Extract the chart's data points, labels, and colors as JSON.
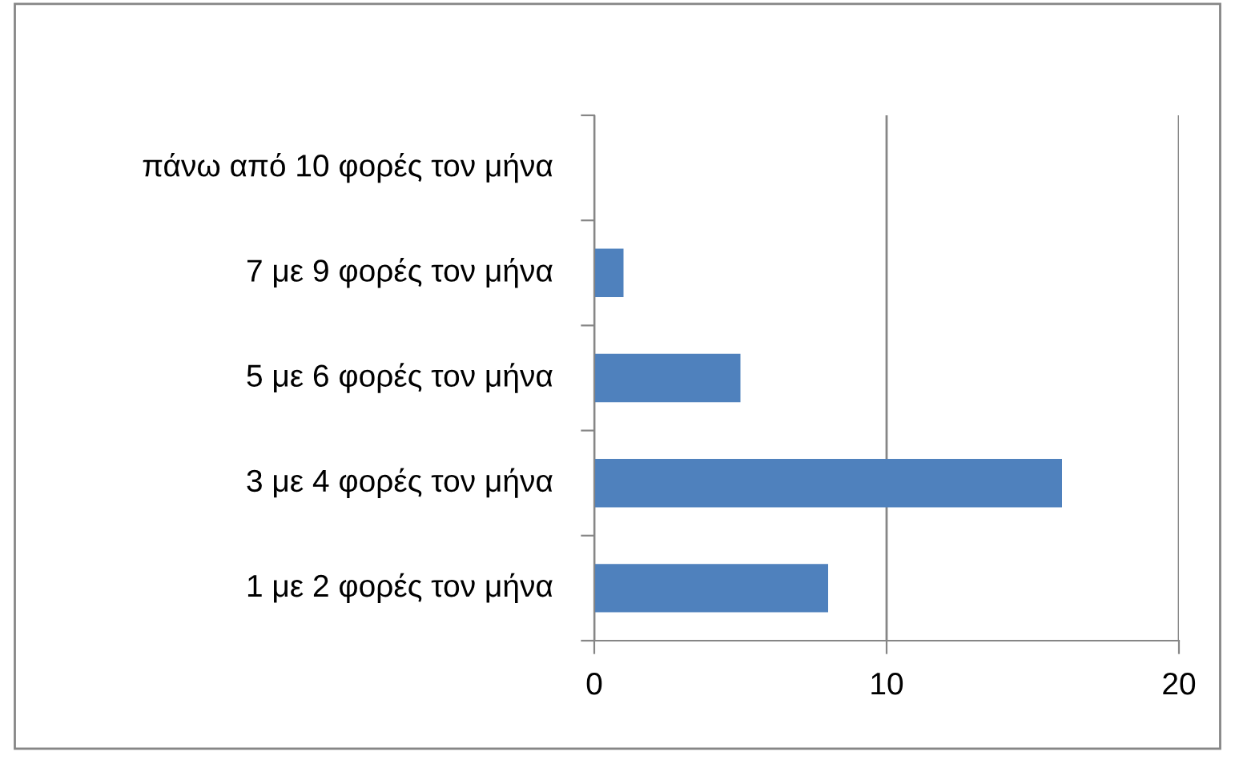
{
  "chart_data": {
    "type": "bar",
    "orientation": "horizontal",
    "categories": [
      "πάνω από 10 φορές τον μήνα",
      "7 με 9 φορές τον μήνα",
      "5 με 6 φορές τον μήνα",
      "3 με 4 φορές τον μήνα",
      "1 με 2 φορές τον μήνα"
    ],
    "values": [
      0,
      1,
      5,
      16,
      8
    ],
    "color": "#4f81bd",
    "xlim": [
      0,
      20
    ],
    "xticks": [
      0,
      10,
      20
    ],
    "grid": "x",
    "legend": false
  }
}
